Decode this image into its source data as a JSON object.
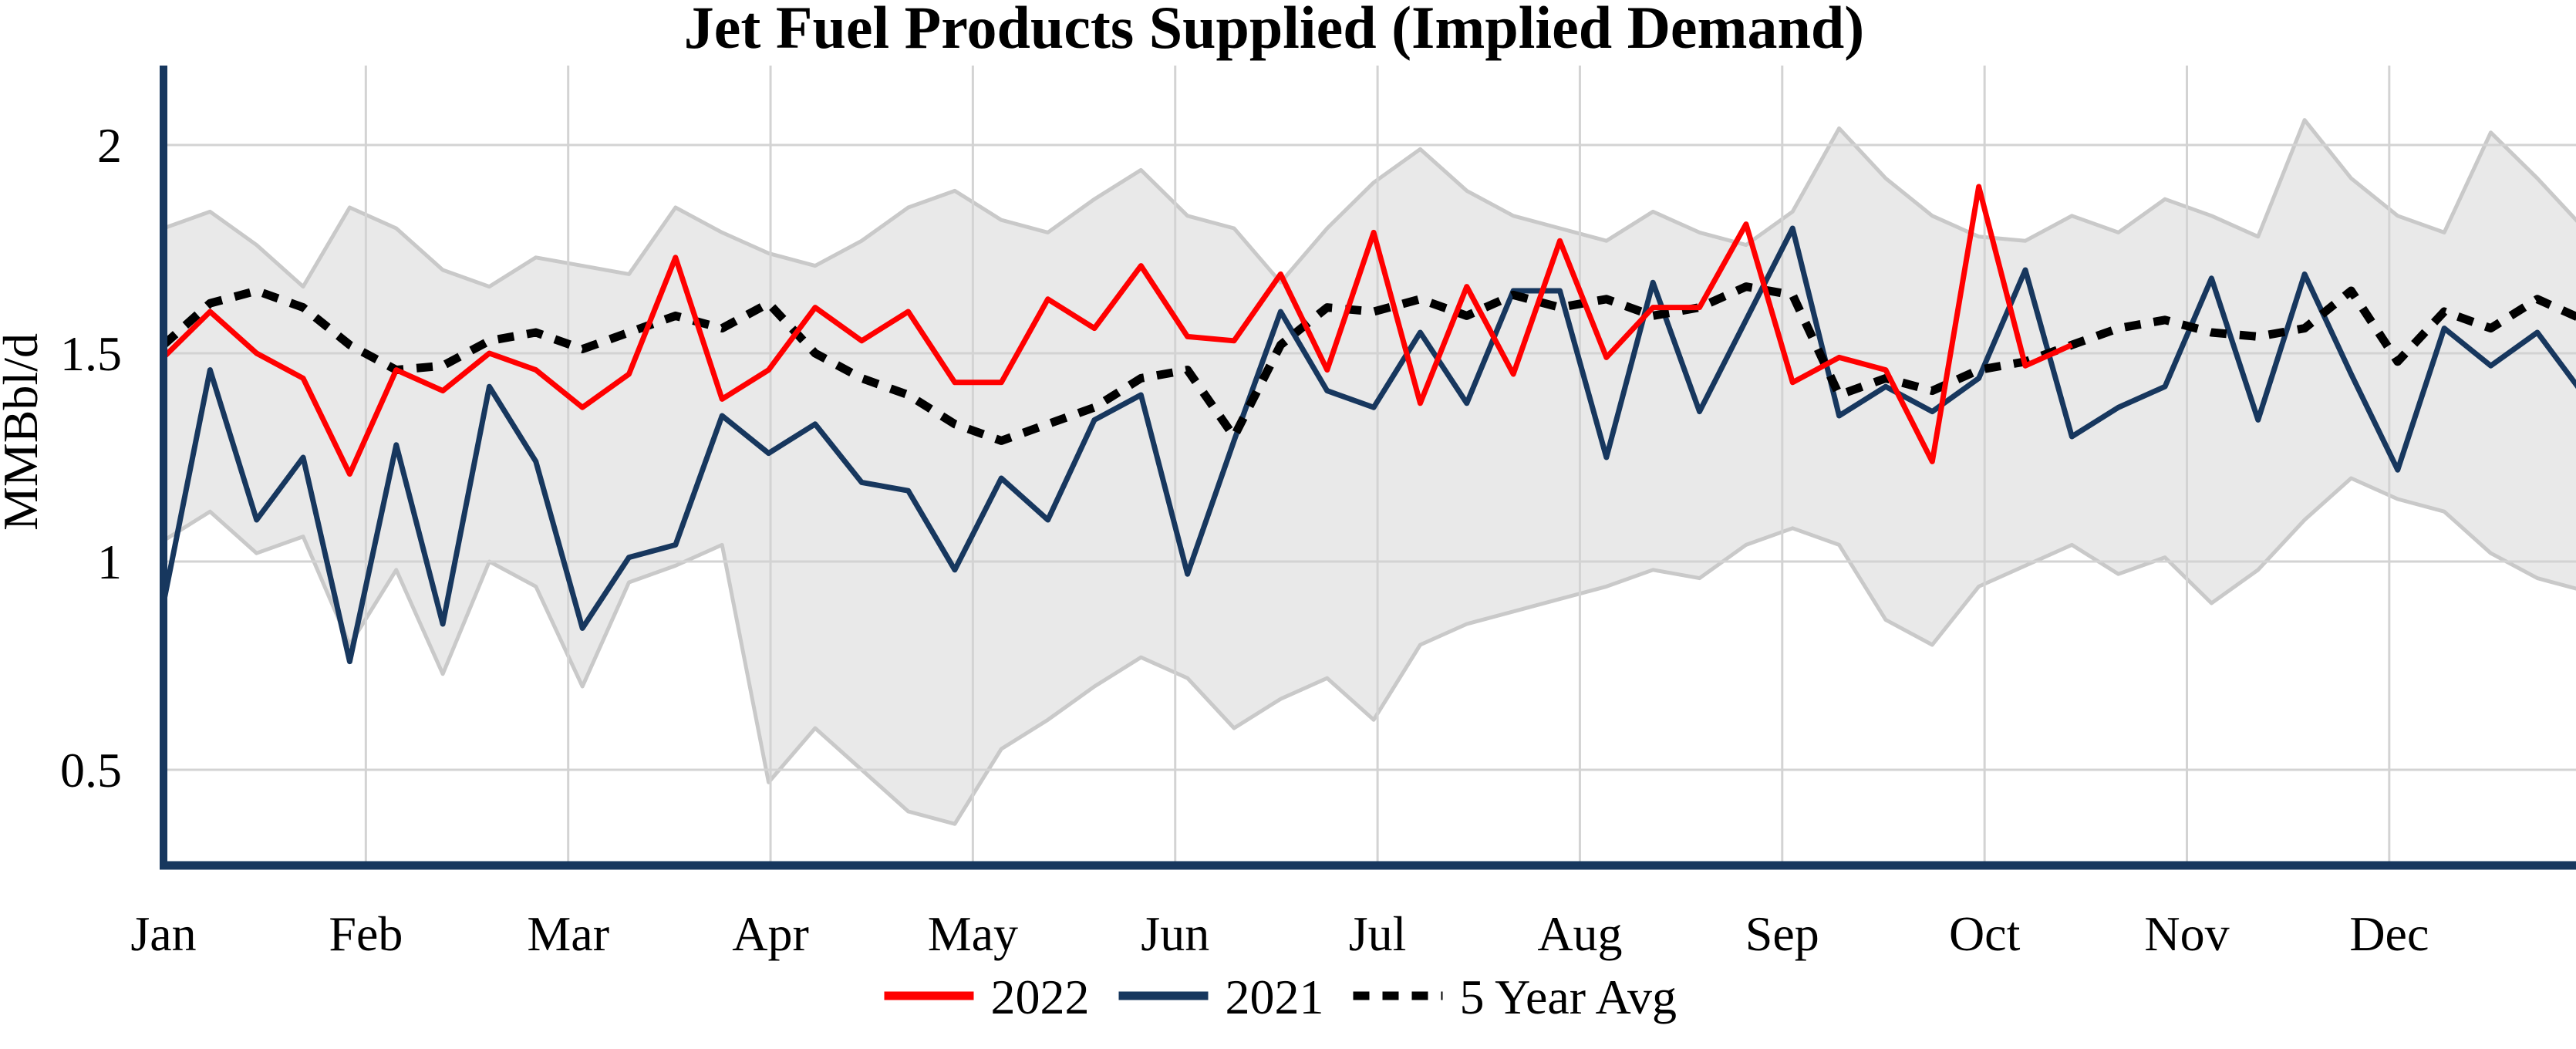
{
  "title": "Jet Fuel Products Supplied (Implied Demand)",
  "y_axis": {
    "label": "MMBbl/d",
    "ticks": [
      {
        "label": "2",
        "value": 2.0
      },
      {
        "label": "1.5",
        "value": 1.5
      },
      {
        "label": "1",
        "value": 1.0
      },
      {
        "label": "0.5",
        "value": 0.5
      }
    ]
  },
  "x_axis": {
    "months": [
      "Jan",
      "Feb",
      "Mar",
      "Apr",
      "May",
      "Jun",
      "Jul",
      "Aug",
      "Sep",
      "Oct",
      "Nov",
      "Dec"
    ]
  },
  "legend": [
    {
      "label": "2022",
      "color": "#FF0000",
      "style": "solid"
    },
    {
      "label": "2021",
      "color": "#17375E",
      "style": "solid"
    },
    {
      "label": "5 Year Avg",
      "color": "#000000",
      "style": "dotted"
    }
  ],
  "colors": {
    "series_2022": "#FF0000",
    "series_2021": "#17375E",
    "series_avg": "#000000",
    "band_fill": "#E9E9E9",
    "band_edge": "#C9C9C9",
    "grid": "#D3D3D3",
    "axis": "#17375E",
    "background": "#FFFFFF"
  },
  "chart_data": {
    "type": "line",
    "title": "Jet Fuel Products Supplied (Implied Demand)",
    "ylabel": "MMBbl/d",
    "xlabel": "",
    "x_unit": "week_of_year",
    "ylim": [
      0.27,
      2.19
    ],
    "grid": true,
    "legend_position": "bottom-center",
    "categories_months": [
      "Jan",
      "Feb",
      "Mar",
      "Apr",
      "May",
      "Jun",
      "Jul",
      "Aug",
      "Sep",
      "Oct",
      "Nov",
      "Dec"
    ],
    "series": [
      {
        "name": "2022",
        "type": "line",
        "color": "#FF0000",
        "note": "weekly values, ends early October",
        "values": [
          1.49,
          1.6,
          1.5,
          1.44,
          1.21,
          1.46,
          1.41,
          1.5,
          1.46,
          1.37,
          1.45,
          1.73,
          1.39,
          1.46,
          1.61,
          1.53,
          1.6,
          1.43,
          1.43,
          1.63,
          1.56,
          1.71,
          1.54,
          1.53,
          1.69,
          1.46,
          1.79,
          1.38,
          1.66,
          1.45,
          1.77,
          1.49,
          1.61,
          1.61,
          1.81,
          1.43,
          1.49,
          1.46,
          1.24,
          1.9,
          1.47,
          1.52
        ]
      },
      {
        "name": "2021",
        "type": "line",
        "color": "#17375E",
        "values": [
          0.9,
          1.46,
          1.1,
          1.25,
          0.76,
          1.28,
          0.85,
          1.42,
          1.24,
          0.84,
          1.01,
          1.04,
          1.35,
          1.26,
          1.33,
          1.19,
          1.17,
          0.98,
          1.2,
          1.1,
          1.34,
          1.4,
          0.97,
          1.29,
          1.6,
          1.41,
          1.37,
          1.55,
          1.38,
          1.65,
          1.65,
          1.25,
          1.67,
          1.36,
          1.58,
          1.8,
          1.35,
          1.42,
          1.36,
          1.44,
          1.7,
          1.3,
          1.37,
          1.42,
          1.68,
          1.34,
          1.69,
          1.45,
          1.22,
          1.56,
          1.47,
          1.55,
          1.4
        ]
      },
      {
        "name": "5 Year Avg",
        "type": "line",
        "style": "dotted",
        "color": "#000000",
        "values": [
          1.52,
          1.62,
          1.65,
          1.61,
          1.52,
          1.46,
          1.47,
          1.53,
          1.55,
          1.51,
          1.55,
          1.59,
          1.56,
          1.62,
          1.5,
          1.44,
          1.4,
          1.33,
          1.29,
          1.33,
          1.37,
          1.44,
          1.46,
          1.3,
          1.52,
          1.61,
          1.6,
          1.63,
          1.59,
          1.64,
          1.61,
          1.63,
          1.59,
          1.61,
          1.66,
          1.64,
          1.4,
          1.44,
          1.41,
          1.46,
          1.48,
          1.52,
          1.56,
          1.58,
          1.55,
          1.54,
          1.56,
          1.65,
          1.48,
          1.6,
          1.56,
          1.63,
          1.58
        ]
      },
      {
        "name": "5 Year Range",
        "type": "band",
        "fill": "#E9E9E9",
        "top": [
          1.8,
          1.84,
          1.76,
          1.66,
          1.85,
          1.8,
          1.7,
          1.66,
          1.73,
          1.71,
          1.69,
          1.85,
          1.79,
          1.74,
          1.71,
          1.77,
          1.85,
          1.89,
          1.82,
          1.79,
          1.87,
          1.94,
          1.83,
          1.8,
          1.67,
          1.8,
          1.91,
          1.99,
          1.89,
          1.83,
          1.8,
          1.77,
          1.84,
          1.79,
          1.76,
          1.84,
          2.04,
          1.92,
          1.83,
          1.78,
          1.77,
          1.83,
          1.79,
          1.87,
          1.83,
          1.78,
          2.06,
          1.92,
          1.83,
          1.79,
          2.03,
          1.92,
          1.8
        ],
        "bottom": [
          1.05,
          1.12,
          1.02,
          1.06,
          0.8,
          0.98,
          0.73,
          1.0,
          0.94,
          0.7,
          0.95,
          0.99,
          1.04,
          0.47,
          0.6,
          0.5,
          0.4,
          0.37,
          0.55,
          0.62,
          0.7,
          0.77,
          0.72,
          0.6,
          0.67,
          0.72,
          0.62,
          0.8,
          0.85,
          0.88,
          0.91,
          0.94,
          0.98,
          0.96,
          1.04,
          1.08,
          1.04,
          0.86,
          0.8,
          0.94,
          0.99,
          1.04,
          0.97,
          1.01,
          0.9,
          0.98,
          1.1,
          1.2,
          1.15,
          1.12,
          1.02,
          0.96,
          0.93
        ]
      }
    ]
  }
}
